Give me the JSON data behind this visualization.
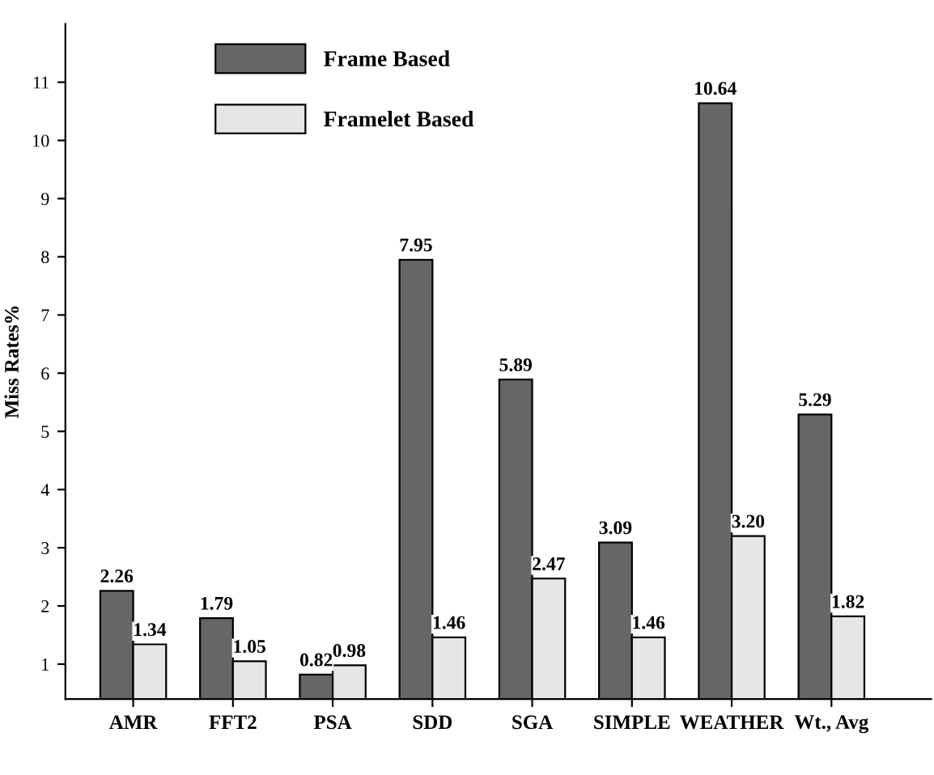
{
  "chart_data": {
    "type": "bar",
    "ylabel": "Miss Rates%",
    "categories": [
      "AMR",
      "FFT2",
      "PSA",
      "SDD",
      "SGA",
      "SIMPLE",
      "WEATHER",
      "Wt., Avg"
    ],
    "series": [
      {
        "name": "Frame Based",
        "color": "#666666",
        "values": [
          2.26,
          1.79,
          0.82,
          7.95,
          5.89,
          3.09,
          10.64,
          5.29
        ],
        "value_labels": [
          "2.26",
          "1.79",
          "0.82",
          "7.95",
          "5.89",
          "3.09",
          "10.64",
          "5.29"
        ]
      },
      {
        "name": "Framelet Based",
        "color": "#e6e6e6",
        "values": [
          1.34,
          1.05,
          0.98,
          1.46,
          2.47,
          1.46,
          3.2,
          1.82
        ],
        "value_labels": [
          "1.34",
          "1.05",
          "0.98",
          "1.46",
          "2.47",
          "1.46",
          "3.20",
          "1.82"
        ]
      }
    ],
    "ylim": [
      0.4,
      12
    ],
    "yticks": [
      1,
      2,
      3,
      4,
      5,
      6,
      7,
      8,
      9,
      10,
      11
    ],
    "legend": "top left",
    "grid": false
  }
}
